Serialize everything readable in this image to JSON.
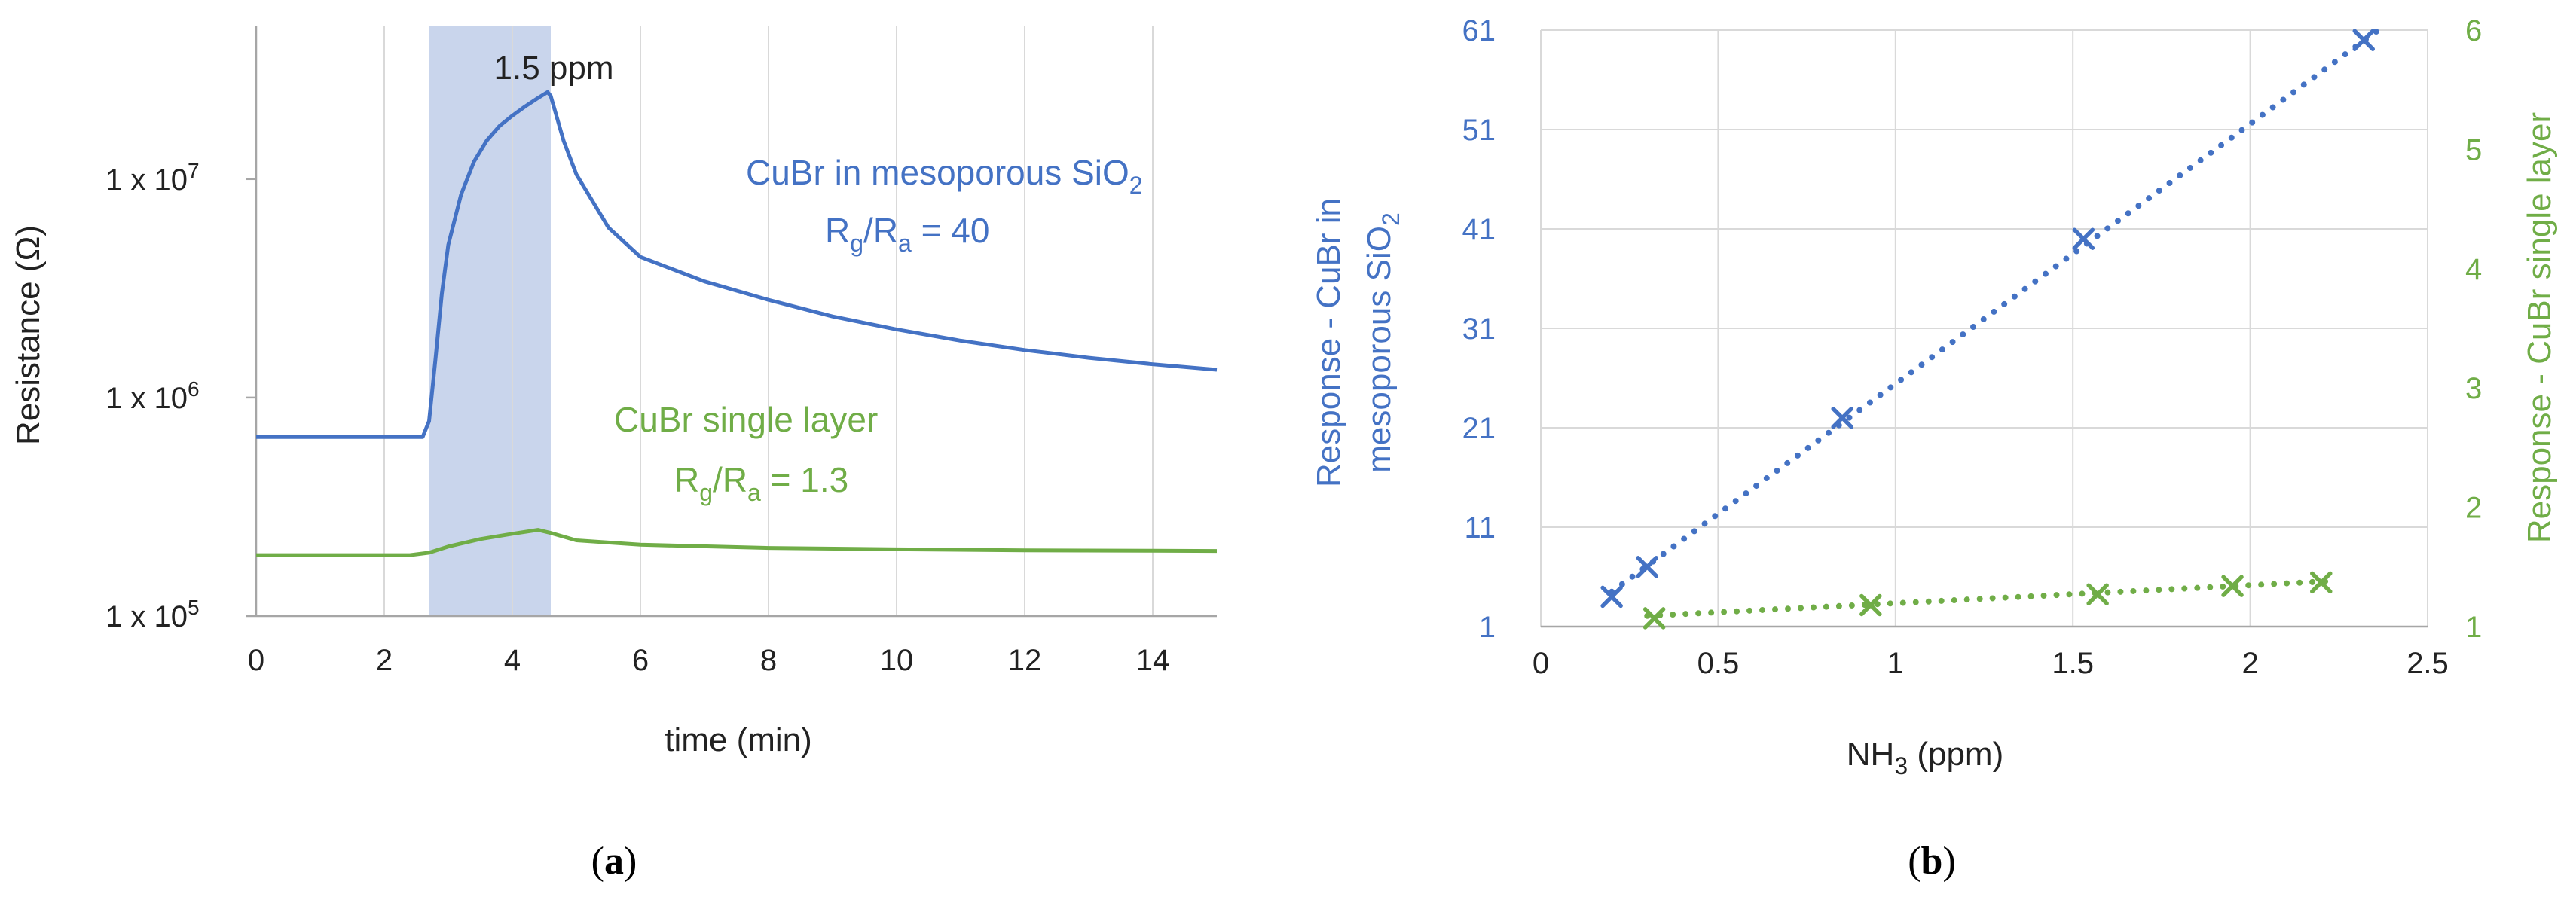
{
  "colors": {
    "blue": "#4472C4",
    "green": "#70AD47",
    "shade": "#C9D5EC",
    "grid": "#D9D9D9",
    "axis": "#A6A6A6",
    "text": "#222222"
  },
  "panels": {
    "a_label": "a",
    "b_label": "b"
  },
  "chart_data": [
    {
      "type": "line",
      "panel": "a",
      "xlabel": "time (min)",
      "ylabel": "Resistance (Ω)",
      "xlim": [
        0,
        15
      ],
      "ylim": [
        100000,
        50000000
      ],
      "yscale": "log",
      "grid": "vertical",
      "x_ticks": [
        0,
        2,
        4,
        6,
        8,
        10,
        12,
        14
      ],
      "y_ticks": [
        {
          "value": 100000,
          "base": "1 x 10",
          "exp": "5"
        },
        {
          "value": 1000000,
          "base": "1 x 10",
          "exp": "6"
        },
        {
          "value": 10000000,
          "base": "1 x 10",
          "exp": "7"
        }
      ],
      "exposure": {
        "start": 2.7,
        "end": 4.6,
        "label": "1.5 ppm"
      },
      "series": [
        {
          "name": "CuBr in mesoporous SiO2",
          "label_main": "CuBr in mesoporous SiO",
          "label_sub": "2",
          "ratio": "40",
          "color": "#4472C4",
          "x": [
            0,
            2.6,
            2.7,
            2.8,
            2.9,
            3.0,
            3.2,
            3.4,
            3.6,
            3.8,
            4.0,
            4.2,
            4.4,
            4.55,
            4.6,
            4.8,
            5.0,
            5.5,
            6,
            7,
            8,
            9,
            10,
            11,
            12,
            13,
            14,
            15
          ],
          "y": [
            660000,
            660000,
            780000,
            1500000,
            3000000,
            5000000,
            8500000,
            12000000,
            15000000,
            17500000,
            19500000,
            21500000,
            23500000,
            25000000,
            24000000,
            15000000,
            10500000,
            6000000,
            4400000,
            3400000,
            2800000,
            2350000,
            2050000,
            1820000,
            1650000,
            1520000,
            1420000,
            1340000
          ]
        },
        {
          "name": "CuBr single layer",
          "ratio": "1.3",
          "color": "#70AD47",
          "x": [
            0,
            2.4,
            2.7,
            3.0,
            3.5,
            4.0,
            4.4,
            4.6,
            5.0,
            6,
            8,
            10,
            12,
            14,
            15
          ],
          "y": [
            190000,
            190000,
            195000,
            208000,
            225000,
            238000,
            248000,
            240000,
            222000,
            212000,
            205000,
            202000,
            200000,
            199000,
            198500
          ]
        }
      ],
      "ratio_label_main": "R",
      "ratio_sub_g": "g",
      "ratio_sub_a": "a"
    },
    {
      "type": "scatter",
      "panel": "b",
      "xlabel_main": "NH",
      "xlabel_sub": "3",
      "xlabel_unit": " (ppm)",
      "xlim": [
        0,
        2.5
      ],
      "ylim_left": [
        1,
        61
      ],
      "ylim_right": [
        1,
        6
      ],
      "grid": true,
      "x_ticks": [
        "0",
        "0.5",
        "1",
        "1.5",
        "2",
        "2.5"
      ],
      "y_ticks_left": [
        "1",
        "11",
        "21",
        "31",
        "41",
        "51",
        "61"
      ],
      "y_ticks_right": [
        "1",
        "2",
        "3",
        "4",
        "5",
        "6"
      ],
      "ylabel_left_line1": "Response - CuBr in",
      "ylabel_left_line2_main": "mesoporous SiO",
      "ylabel_left_line2_sub": "2",
      "ylabel_right": "Response - CuBr single layer",
      "series": [
        {
          "name": "CuBr in mesoporous SiO2",
          "axis": "left",
          "color": "#4472C4",
          "x": [
            0.2,
            0.3,
            0.85,
            1.53,
            2.32
          ],
          "y": [
            4,
            7,
            22,
            40,
            60
          ],
          "trendline": {
            "x": [
              0.2,
              2.38
            ],
            "y": [
              4.5,
              61.5
            ]
          }
        },
        {
          "name": "CuBr single layer",
          "axis": "right",
          "color": "#70AD47",
          "x": [
            0.32,
            0.93,
            1.57,
            1.95,
            2.2
          ],
          "y": [
            1.07,
            1.18,
            1.27,
            1.34,
            1.37
          ],
          "trendline": {
            "x": [
              0.3,
              2.22
            ],
            "y": [
              1.09,
              1.38
            ]
          }
        }
      ]
    }
  ]
}
